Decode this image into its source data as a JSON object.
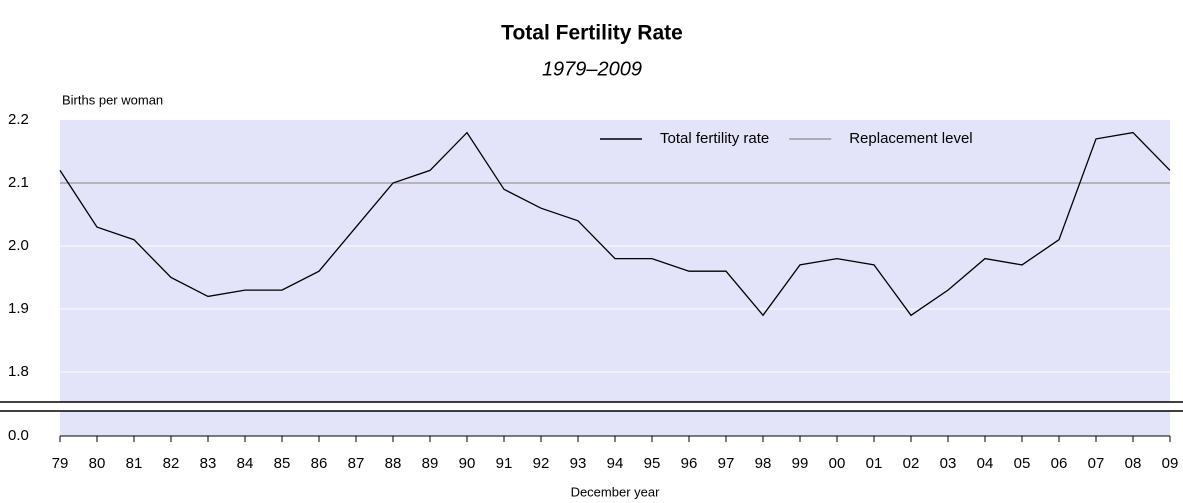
{
  "chart_data": {
    "type": "line",
    "title": "Total Fertility Rate",
    "subtitle": "1979–2009",
    "y_label": "Births per woman",
    "x_label": "December year",
    "categories": [
      "79",
      "80",
      "81",
      "82",
      "83",
      "84",
      "85",
      "86",
      "87",
      "88",
      "89",
      "90",
      "91",
      "92",
      "93",
      "94",
      "95",
      "96",
      "97",
      "98",
      "99",
      "00",
      "01",
      "02",
      "03",
      "04",
      "05",
      "06",
      "07",
      "08",
      "09"
    ],
    "series": [
      {
        "name": "Total fertility rate",
        "color": "#000000",
        "values": [
          2.12,
          2.03,
          2.01,
          1.95,
          1.92,
          1.93,
          1.93,
          1.96,
          2.03,
          2.1,
          2.12,
          2.18,
          2.09,
          2.06,
          2.04,
          1.98,
          1.98,
          1.96,
          1.96,
          1.89,
          1.97,
          1.98,
          1.97,
          1.89,
          1.93,
          1.98,
          1.97,
          2.01,
          2.17,
          2.18,
          2.12
        ]
      },
      {
        "name": "Replacement level",
        "color": "#999999",
        "values": [
          2.1,
          2.1,
          2.1,
          2.1,
          2.1,
          2.1,
          2.1,
          2.1,
          2.1,
          2.1,
          2.1,
          2.1,
          2.1,
          2.1,
          2.1,
          2.1,
          2.1,
          2.1,
          2.1,
          2.1,
          2.1,
          2.1,
          2.1,
          2.1,
          2.1,
          2.1,
          2.1,
          2.1,
          2.1,
          2.1,
          2.1
        ]
      }
    ],
    "ylim": [
      0,
      2.2
    ],
    "yticks": [
      {
        "value": 0,
        "label": "0.0"
      },
      1.8,
      1.9,
      {
        "value": 2.0,
        "label": "2.0"
      },
      2.1,
      2.2
    ],
    "axis_break": true,
    "grid": true,
    "plot_background": "#e3e3fa",
    "legend": "top-right"
  }
}
